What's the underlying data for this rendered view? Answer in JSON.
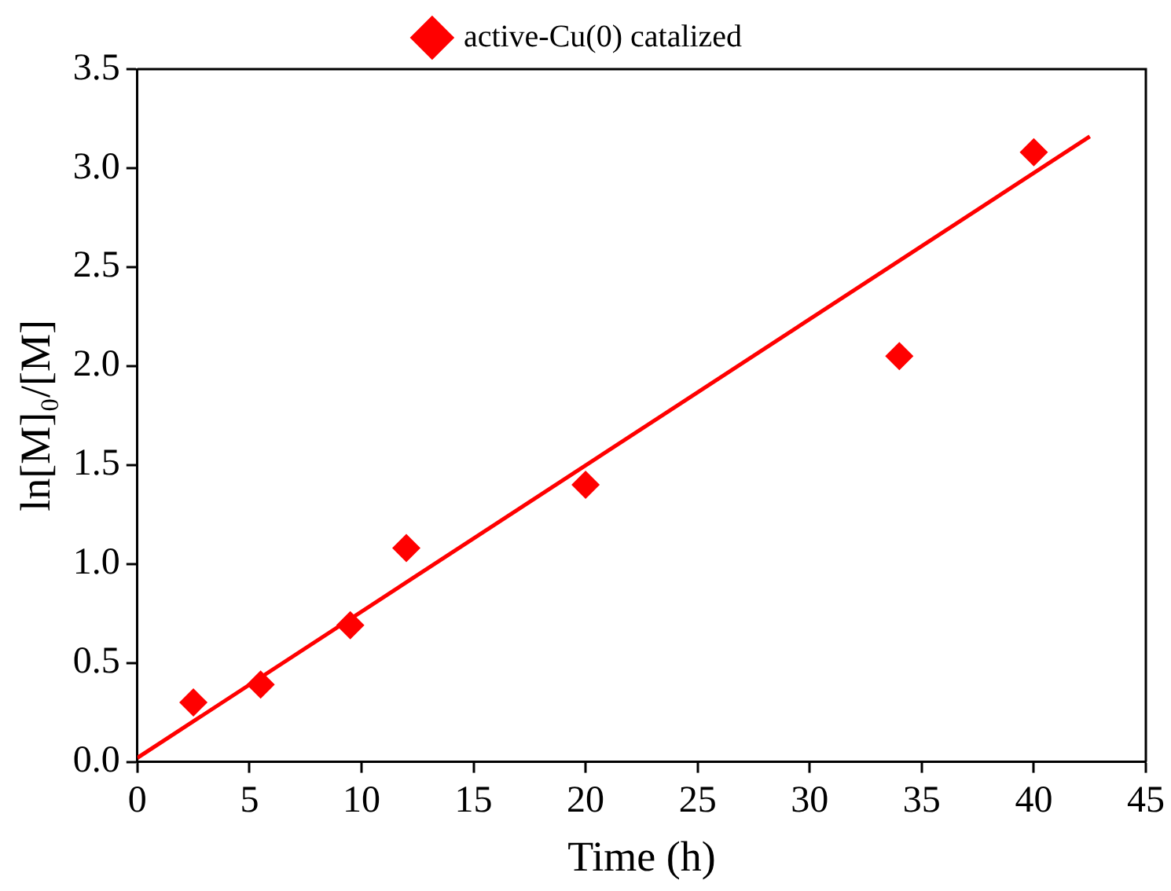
{
  "chart_data": {
    "type": "scatter",
    "xlabel": "Time (h)",
    "ylabel": "ln[M]₀/[M]",
    "xlim": [
      0,
      45
    ],
    "xticks": [
      0,
      5,
      10,
      15,
      20,
      25,
      30,
      35,
      40,
      45
    ],
    "ylim": [
      0,
      3.5
    ],
    "yticks": [
      {
        "value": 0,
        "label": "0.0"
      },
      {
        "value": 0.5,
        "label": "0.5"
      },
      {
        "value": 1,
        "label": "1.0"
      },
      {
        "value": 1.5,
        "label": "1.5"
      },
      {
        "value": 2,
        "label": "2.0"
      },
      {
        "value": 2.5,
        "label": "2.5"
      },
      {
        "value": 3,
        "label": "3.0"
      },
      {
        "value": 3.5,
        "label": "3.5"
      }
    ],
    "grid": false,
    "legend": "top",
    "marker": "diamond",
    "series": [
      {
        "name": "active-Cu(0) catalized",
        "type": "scatter",
        "color": "#ff0000",
        "x": [
          2.5,
          5.5,
          9.5,
          12,
          20,
          34,
          40
        ],
        "values": [
          0.3,
          0.39,
          0.69,
          1.08,
          1.4,
          2.05,
          3.08
        ]
      },
      {
        "type": "line",
        "color": "#ff0000",
        "marker": "none",
        "line_style": "solid",
        "x": [
          0,
          42.5
        ],
        "values": [
          0.02,
          3.16
        ]
      }
    ]
  }
}
